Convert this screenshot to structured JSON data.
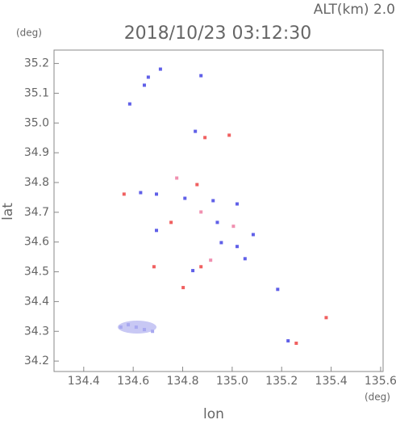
{
  "chart_data": {
    "type": "scatter",
    "title": "2018/10/23 03:12:30",
    "subtitle": "ALT(km) 2.0",
    "ylabel": "lat",
    "xlabel": "lon",
    "yunit": "(deg)",
    "xunit": "(deg)",
    "xlim": [
      134.28,
      135.61
    ],
    "ylim": [
      34.165,
      35.245
    ],
    "xticks": [
      134.4,
      134.6,
      134.8,
      {
        "value": 135,
        "label": "135.0"
      },
      135.2,
      135.4,
      135.6
    ],
    "yticks": [
      35.2,
      35.1,
      {
        "value": 35,
        "label": "35.0"
      },
      34.9,
      34.8,
      34.7,
      34.6,
      34.5,
      34.4,
      34.3,
      34.2
    ],
    "x": [
      134.661,
      134.71,
      134.645,
      134.586,
      134.874,
      134.851,
      134.89,
      134.988,
      134.563,
      134.63,
      134.694,
      134.776,
      134.858,
      134.809,
      134.923,
      134.874,
      134.94,
      135.02,
      135.005,
      134.956,
      135.02,
      135.085,
      135.052,
      134.874,
      134.913,
      134.841,
      134.684,
      134.753,
      134.802,
      135.184,
      134.612,
      134.645,
      134.58,
      134.55,
      134.678,
      135.259,
      135.226,
      135.38,
      134.694
    ],
    "y": [
      35.154,
      35.181,
      35.127,
      35.064,
      35.159,
      34.972,
      34.951,
      34.959,
      34.761,
      34.766,
      34.761,
      34.815,
      34.793,
      34.747,
      34.739,
      34.701,
      34.666,
      34.728,
      34.653,
      34.598,
      34.585,
      34.625,
      34.544,
      34.517,
      34.539,
      34.504,
      34.517,
      34.666,
      34.447,
      34.441,
      34.314,
      34.306,
      34.322,
      34.314,
      34.3,
      34.26,
      34.268,
      34.346,
      34.639
    ],
    "colors": [
      "#6060e8",
      "#6060e8",
      "#6060e8",
      "#6060e8",
      "#6060e8",
      "#6060e8",
      "#f06060",
      "#f06060",
      "#f06060",
      "#6060e8",
      "#6060e8",
      "#f090b0",
      "#f06060",
      "#6060e8",
      "#6060e8",
      "#f090b0",
      "#6060e8",
      "#6060e8",
      "#f090b0",
      "#6060e8",
      "#6060e8",
      "#6060e8",
      "#6060e8",
      "#f06060",
      "#f090b0",
      "#6060e8",
      "#f06060",
      "#f06060",
      "#f06060",
      "#6060e8",
      "#a8a8f0",
      "#a8a8f0",
      "#a8a8f0",
      "#a8a8f0",
      "#a8a8f0",
      "#f06060",
      "#6060e8",
      "#f06060",
      "#6060e8"
    ]
  }
}
